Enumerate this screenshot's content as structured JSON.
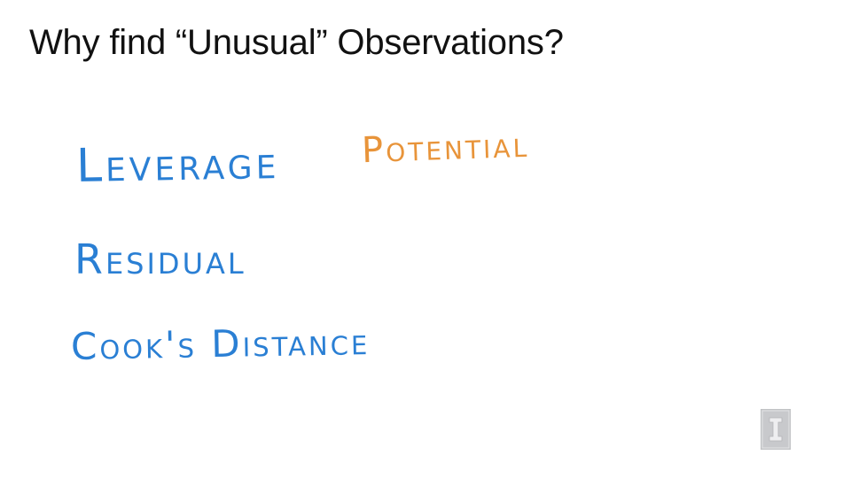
{
  "slide": {
    "title": "Why find “Unusual” Observations?",
    "handwritten_terms": [
      {
        "text": "Leverage",
        "color": "#2a7fd4"
      },
      {
        "text": "Residual",
        "color": "#2a7fd4"
      },
      {
        "text": "Cook's Distance",
        "color": "#2a7fd4"
      }
    ],
    "annotation": {
      "text": "Potential",
      "color": "#e8943a"
    },
    "logo": {
      "icon": "university-block-i-logo",
      "color": "#c8c9cc"
    }
  }
}
